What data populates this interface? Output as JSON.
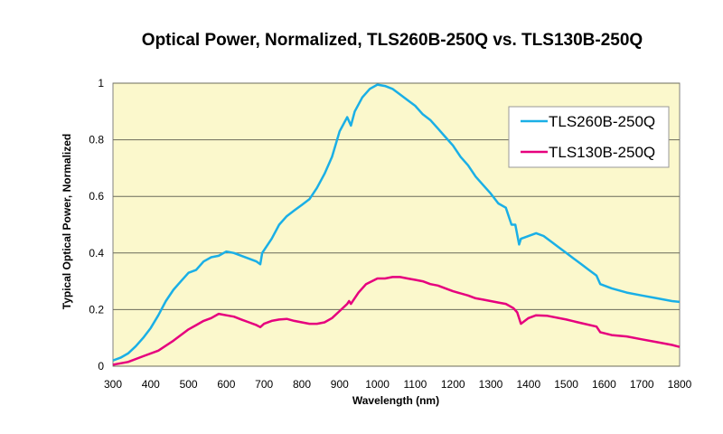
{
  "chart_data": {
    "type": "line",
    "title": "Optical Power, Normalized, TLS260B-250Q vs. TLS130B-250Q",
    "xlabel": "Wavelength (nm)",
    "ylabel": "Typical Optical Power, Normalized",
    "xlim": [
      300,
      1800
    ],
    "ylim": [
      0,
      1
    ],
    "xticks": [
      "300",
      "400",
      "500",
      "600",
      "700",
      "800",
      "900",
      "1000",
      "1100",
      "1200",
      "1300",
      "1400",
      "1500",
      "1600",
      "1700",
      "1800"
    ],
    "yticks": [
      "0",
      "0.2",
      "0.4",
      "0.6",
      "0.8",
      "1"
    ],
    "grid": "horizontal",
    "legend_position": "top-right",
    "background_color": "#fbf8cc",
    "series": [
      {
        "name": "TLS260B-250Q",
        "color": "#1aafe6",
        "x": [
          300,
          320,
          340,
          360,
          380,
          400,
          420,
          440,
          460,
          480,
          500,
          520,
          540,
          560,
          580,
          600,
          620,
          640,
          660,
          680,
          690,
          695,
          720,
          740,
          760,
          780,
          800,
          820,
          840,
          860,
          880,
          900,
          920,
          930,
          940,
          960,
          980,
          1000,
          1020,
          1040,
          1060,
          1080,
          1100,
          1120,
          1140,
          1160,
          1180,
          1200,
          1220,
          1240,
          1260,
          1280,
          1300,
          1320,
          1340,
          1355,
          1365,
          1375,
          1380,
          1390,
          1420,
          1440,
          1460,
          1480,
          1500,
          1520,
          1540,
          1560,
          1580,
          1590,
          1620,
          1660,
          1700,
          1740,
          1780,
          1800
        ],
        "y": [
          0.02,
          0.03,
          0.045,
          0.07,
          0.1,
          0.135,
          0.18,
          0.23,
          0.27,
          0.3,
          0.33,
          0.34,
          0.37,
          0.385,
          0.39,
          0.405,
          0.4,
          0.39,
          0.38,
          0.37,
          0.36,
          0.4,
          0.45,
          0.5,
          0.53,
          0.55,
          0.57,
          0.59,
          0.63,
          0.68,
          0.74,
          0.83,
          0.88,
          0.85,
          0.9,
          0.95,
          0.98,
          0.995,
          0.99,
          0.98,
          0.96,
          0.94,
          0.92,
          0.89,
          0.87,
          0.84,
          0.81,
          0.78,
          0.74,
          0.71,
          0.67,
          0.64,
          0.61,
          0.575,
          0.56,
          0.5,
          0.5,
          0.43,
          0.45,
          0.455,
          0.47,
          0.46,
          0.44,
          0.42,
          0.4,
          0.38,
          0.36,
          0.34,
          0.32,
          0.29,
          0.275,
          0.26,
          0.25,
          0.24,
          0.23,
          0.227
        ]
      },
      {
        "name": "TLS130B-250Q",
        "color": "#e6007e",
        "x": [
          300,
          340,
          380,
          420,
          460,
          500,
          520,
          540,
          560,
          580,
          600,
          620,
          640,
          660,
          680,
          690,
          700,
          720,
          740,
          760,
          780,
          800,
          820,
          840,
          860,
          880,
          900,
          920,
          925,
          930,
          950,
          970,
          1000,
          1020,
          1040,
          1060,
          1080,
          1100,
          1120,
          1140,
          1160,
          1180,
          1200,
          1240,
          1260,
          1280,
          1300,
          1320,
          1340,
          1360,
          1370,
          1380,
          1400,
          1420,
          1450,
          1500,
          1540,
          1580,
          1590,
          1620,
          1660,
          1700,
          1740,
          1780,
          1800
        ],
        "y": [
          0.005,
          0.015,
          0.035,
          0.055,
          0.09,
          0.13,
          0.145,
          0.16,
          0.17,
          0.185,
          0.18,
          0.175,
          0.165,
          0.155,
          0.145,
          0.138,
          0.15,
          0.16,
          0.165,
          0.167,
          0.16,
          0.155,
          0.15,
          0.15,
          0.155,
          0.17,
          0.195,
          0.22,
          0.23,
          0.22,
          0.26,
          0.29,
          0.31,
          0.31,
          0.315,
          0.315,
          0.31,
          0.305,
          0.3,
          0.29,
          0.285,
          0.275,
          0.265,
          0.25,
          0.24,
          0.235,
          0.23,
          0.225,
          0.22,
          0.205,
          0.19,
          0.15,
          0.17,
          0.18,
          0.178,
          0.165,
          0.152,
          0.14,
          0.12,
          0.11,
          0.105,
          0.095,
          0.085,
          0.075,
          0.068
        ]
      }
    ]
  }
}
